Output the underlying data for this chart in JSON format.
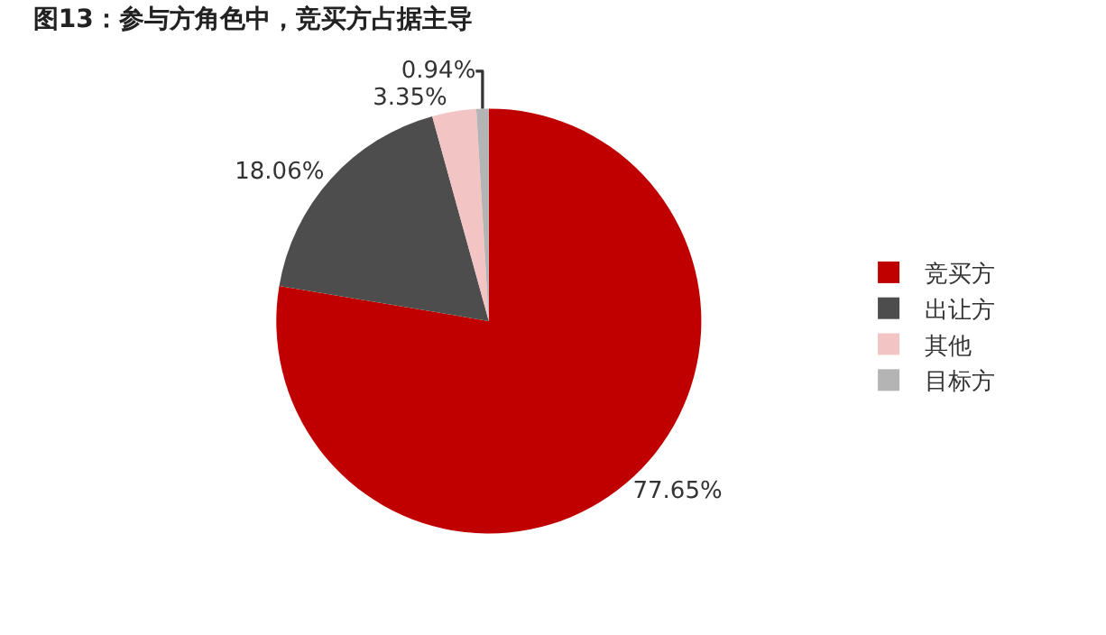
{
  "chart_data": {
    "type": "pie",
    "title": "图13：参与方角色中，竞买方占据主导",
    "categories": [
      "竞买方",
      "出让方",
      "其他",
      "目标方"
    ],
    "values": [
      77.65,
      18.06,
      3.35,
      0.94
    ],
    "value_labels": [
      "77.65%",
      "18.06%",
      "3.35%",
      "0.94%"
    ],
    "colors": [
      "#c00000",
      "#4d4d4d",
      "#f2c4c4",
      "#b4b4b4"
    ],
    "legend": "right"
  }
}
